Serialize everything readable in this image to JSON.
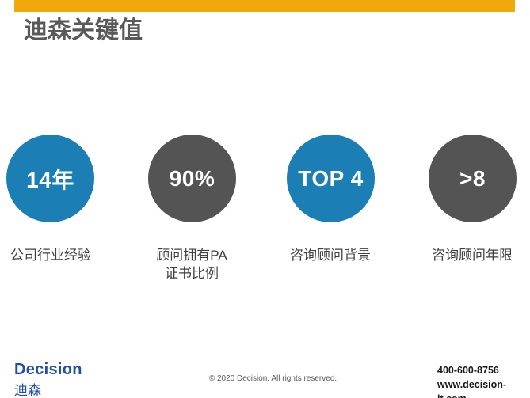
{
  "slide": {
    "title": "迪森关键值",
    "accent_bar_color": "#F0A80A",
    "title_color": "#595959",
    "blue_accent": "#1B7EB4",
    "gray_accent": "#545454"
  },
  "stats": {
    "items": [
      {
        "value": "14年",
        "label": "公司行业经验",
        "color": "#1B7EB4"
      },
      {
        "value": "90%",
        "label": "顾问拥有PA\n证书比例",
        "color": "#545454"
      },
      {
        "value": "TOP 4",
        "label": "咨询顾问背景",
        "color": "#1B7EB4"
      },
      {
        "value": ">8",
        "label": "咨询顾问年限",
        "color": "#545454"
      }
    ]
  },
  "footer": {
    "logo_en": "Decision",
    "logo_cn": "迪森",
    "logo_color": "#1F4FA8",
    "copyright": "© 2020 Decision, All rights reserved.",
    "phone": "400-600-8756",
    "website": "www.decision-it.com"
  }
}
